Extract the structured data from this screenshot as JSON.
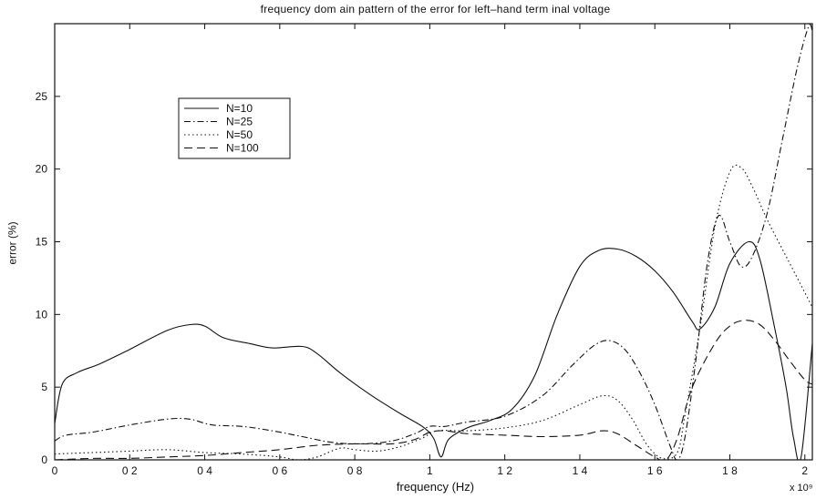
{
  "chart_data": {
    "type": "line",
    "title": "frequency dom ain pattern of the error for left–hand term inal voltage",
    "xlabel": "frequency  (Hz)",
    "ylabel": "error (%)",
    "x_multiplier": "x 10⁹",
    "xlim": [
      0,
      2.02
    ],
    "ylim": [
      0,
      30
    ],
    "xticks": [
      0,
      0.2,
      0.4,
      0.6,
      0.8,
      1,
      1.2,
      1.4,
      1.6,
      1.8,
      2
    ],
    "xtick_labels": [
      "0",
      "0 2",
      "0 4",
      "0 6",
      "0 8",
      "1",
      "1 2",
      "1 4",
      "1 6",
      "1 8",
      "2"
    ],
    "yticks": [
      0,
      5,
      10,
      15,
      20,
      25
    ],
    "ytick_labels": [
      "0",
      "5",
      "10",
      "15",
      "20",
      "25"
    ],
    "grid": false,
    "legend_position": "upper-left",
    "series": [
      {
        "name": "N=10",
        "dash": "solid",
        "x": [
          0,
          0.02,
          0.06,
          0.12,
          0.2,
          0.3,
          0.36,
          0.4,
          0.45,
          0.52,
          0.58,
          0.66,
          0.7,
          0.76,
          0.84,
          0.92,
          0.98,
          1.01,
          1.03,
          1.05,
          1.1,
          1.16,
          1.22,
          1.28,
          1.34,
          1.4,
          1.45,
          1.5,
          1.55,
          1.6,
          1.65,
          1.7,
          1.72,
          1.76,
          1.8,
          1.85,
          1.88,
          1.92,
          1.95,
          1.97,
          1.99,
          2.02
        ],
        "y": [
          2.5,
          5.2,
          6.0,
          6.6,
          7.6,
          8.9,
          9.3,
          9.2,
          8.4,
          8.0,
          7.7,
          7.8,
          7.3,
          6.0,
          4.5,
          3.2,
          2.3,
          1.5,
          0.2,
          1.4,
          2.2,
          2.7,
          3.5,
          5.8,
          10.0,
          13.3,
          14.4,
          14.5,
          14.0,
          13.0,
          11.5,
          9.5,
          9.0,
          10.5,
          13.5,
          15.0,
          13.8,
          9.0,
          5.0,
          1.5,
          0.2,
          8.0
        ]
      },
      {
        "name": "N=25",
        "dash": "dashdot",
        "x": [
          0,
          0.03,
          0.1,
          0.2,
          0.3,
          0.36,
          0.42,
          0.5,
          0.58,
          0.66,
          0.74,
          0.82,
          0.9,
          0.96,
          1.0,
          1.04,
          1.1,
          1.2,
          1.3,
          1.38,
          1.44,
          1.48,
          1.52,
          1.56,
          1.6,
          1.64,
          1.66,
          1.68,
          1.71,
          1.74,
          1.77,
          1.8,
          1.83,
          1.86,
          1.9,
          1.94,
          1.98,
          2.01,
          2.02
        ],
        "y": [
          1.3,
          1.7,
          1.9,
          2.4,
          2.8,
          2.8,
          2.4,
          2.3,
          2.0,
          1.6,
          1.2,
          1.1,
          1.3,
          1.8,
          2.3,
          2.3,
          2.6,
          3.0,
          4.4,
          6.5,
          7.9,
          8.2,
          7.6,
          6.0,
          3.8,
          1.0,
          0.0,
          1.5,
          7.0,
          13.5,
          16.8,
          15.0,
          13.3,
          14.0,
          17.0,
          22.0,
          27.0,
          29.8,
          29.5
        ]
      },
      {
        "name": "N=50",
        "dash": "dotted",
        "x": [
          0,
          0.1,
          0.2,
          0.3,
          0.4,
          0.5,
          0.6,
          0.65,
          0.7,
          0.76,
          0.8,
          0.86,
          0.92,
          0.98,
          1.02,
          1.1,
          1.2,
          1.3,
          1.4,
          1.46,
          1.5,
          1.54,
          1.58,
          1.62,
          1.66,
          1.68,
          1.72,
          1.76,
          1.8,
          1.83,
          1.86,
          1.9,
          1.95,
          2.0,
          2.02
        ],
        "y": [
          0.4,
          0.5,
          0.6,
          0.7,
          0.5,
          0.4,
          0.2,
          0.0,
          0.2,
          0.8,
          0.7,
          0.6,
          0.9,
          1.5,
          2.0,
          2.0,
          2.2,
          2.7,
          3.8,
          4.4,
          4.1,
          2.8,
          1.0,
          0.1,
          0.5,
          3.0,
          9.0,
          16.0,
          19.8,
          20.1,
          18.8,
          16.5,
          14.0,
          11.5,
          10.5
        ]
      },
      {
        "name": "N=100",
        "dash": "dashed",
        "x": [
          0,
          0.1,
          0.2,
          0.3,
          0.4,
          0.5,
          0.6,
          0.7,
          0.8,
          0.9,
          0.96,
          1.0,
          1.04,
          1.1,
          1.2,
          1.3,
          1.4,
          1.46,
          1.5,
          1.55,
          1.6,
          1.63,
          1.66,
          1.7,
          1.76,
          1.8,
          1.84,
          1.88,
          1.92,
          1.96,
          2.0,
          2.02
        ],
        "y": [
          0.0,
          0.1,
          0.1,
          0.2,
          0.3,
          0.5,
          0.7,
          1.0,
          1.1,
          1.1,
          1.4,
          1.9,
          2.0,
          1.8,
          1.7,
          1.6,
          1.7,
          2.0,
          1.8,
          1.0,
          0.2,
          0.0,
          1.5,
          5.0,
          8.0,
          9.2,
          9.6,
          9.3,
          8.2,
          6.8,
          5.5,
          5.2
        ]
      }
    ]
  }
}
